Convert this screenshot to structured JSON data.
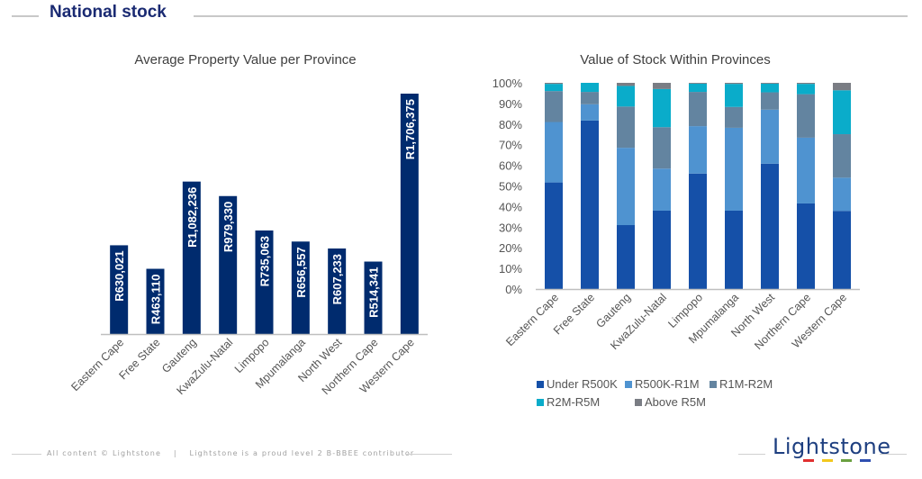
{
  "header": {
    "title": "National stock"
  },
  "footer": {
    "copyright": "All content © Lightstone",
    "separator": "|",
    "bbbee": "Lightstone is a proud level 2 B-BBEE contributor",
    "logo_text": "Lightstone",
    "logo_bar_colors": [
      "#e03030",
      "#f2c81e",
      "#6aa040",
      "#2f4fb0"
    ]
  },
  "chart_data": [
    {
      "type": "bar",
      "title": "Average Property Value per Province",
      "xlabel": "",
      "ylabel": "",
      "categories": [
        "Eastern Cape",
        "Free State",
        "Gauteng",
        "KwaZulu-Natal",
        "Limpopo",
        "Mpumalanga",
        "North West",
        "Northern Cape",
        "Western Cape"
      ],
      "values": [
        630021,
        463110,
        1082236,
        979330,
        735063,
        656557,
        607233,
        514341,
        1706375
      ],
      "data_labels": [
        "R630,021",
        "R463,110",
        "R1,082,236",
        "R979,330",
        "R735,063",
        "R656,557",
        "R607,233",
        "R514,341",
        "R1,706,375"
      ],
      "ylim": [
        0,
        1706375
      ],
      "y_axis_visible": false,
      "grid": false,
      "bar_color": "#002b6e"
    },
    {
      "type": "bar",
      "stacked": true,
      "percent": true,
      "title": "Value of Stock Within Provinces",
      "xlabel": "",
      "ylabel": "",
      "categories": [
        "Eastern Cape",
        "Free State",
        "Gauteng",
        "KwaZulu-Natal",
        "Limpopo",
        "Mpumalanga",
        "North West",
        "Northern Cape",
        "Western Cape"
      ],
      "yticks": [
        "0%",
        "10%",
        "20%",
        "30%",
        "40%",
        "50%",
        "60%",
        "70%",
        "80%",
        "90%",
        "100%"
      ],
      "ylim": [
        0,
        100
      ],
      "grid": false,
      "legend_position": "bottom",
      "series": [
        {
          "name": "Under R500K",
          "color": "#1550a8",
          "values": [
            51.7,
            81.7,
            31.0,
            38.0,
            56.0,
            38.0,
            60.8,
            41.5,
            37.9
          ]
        },
        {
          "name": "R500K-R1M",
          "color": "#4f93d0",
          "values": [
            29.3,
            7.9,
            37.5,
            20.4,
            23.0,
            40.2,
            26.2,
            31.9,
            16.1
          ]
        },
        {
          "name": "R1M-R2M",
          "color": "#6384a0",
          "values": [
            15.0,
            6.0,
            20.0,
            20.1,
            16.6,
            10.1,
            8.4,
            21.1,
            21.1
          ]
        },
        {
          "name": "R2M-R5M",
          "color": "#0aacca",
          "values": [
            3.5,
            4.4,
            10.0,
            18.5,
            4.0,
            11.2,
            4.2,
            5.0,
            21.3
          ]
        },
        {
          "name": "Above R5M",
          "color": "#7a7d84",
          "values": [
            0.5,
            0.0,
            1.5,
            3.0,
            0.4,
            0.5,
            0.4,
            0.5,
            3.6
          ]
        }
      ]
    }
  ]
}
